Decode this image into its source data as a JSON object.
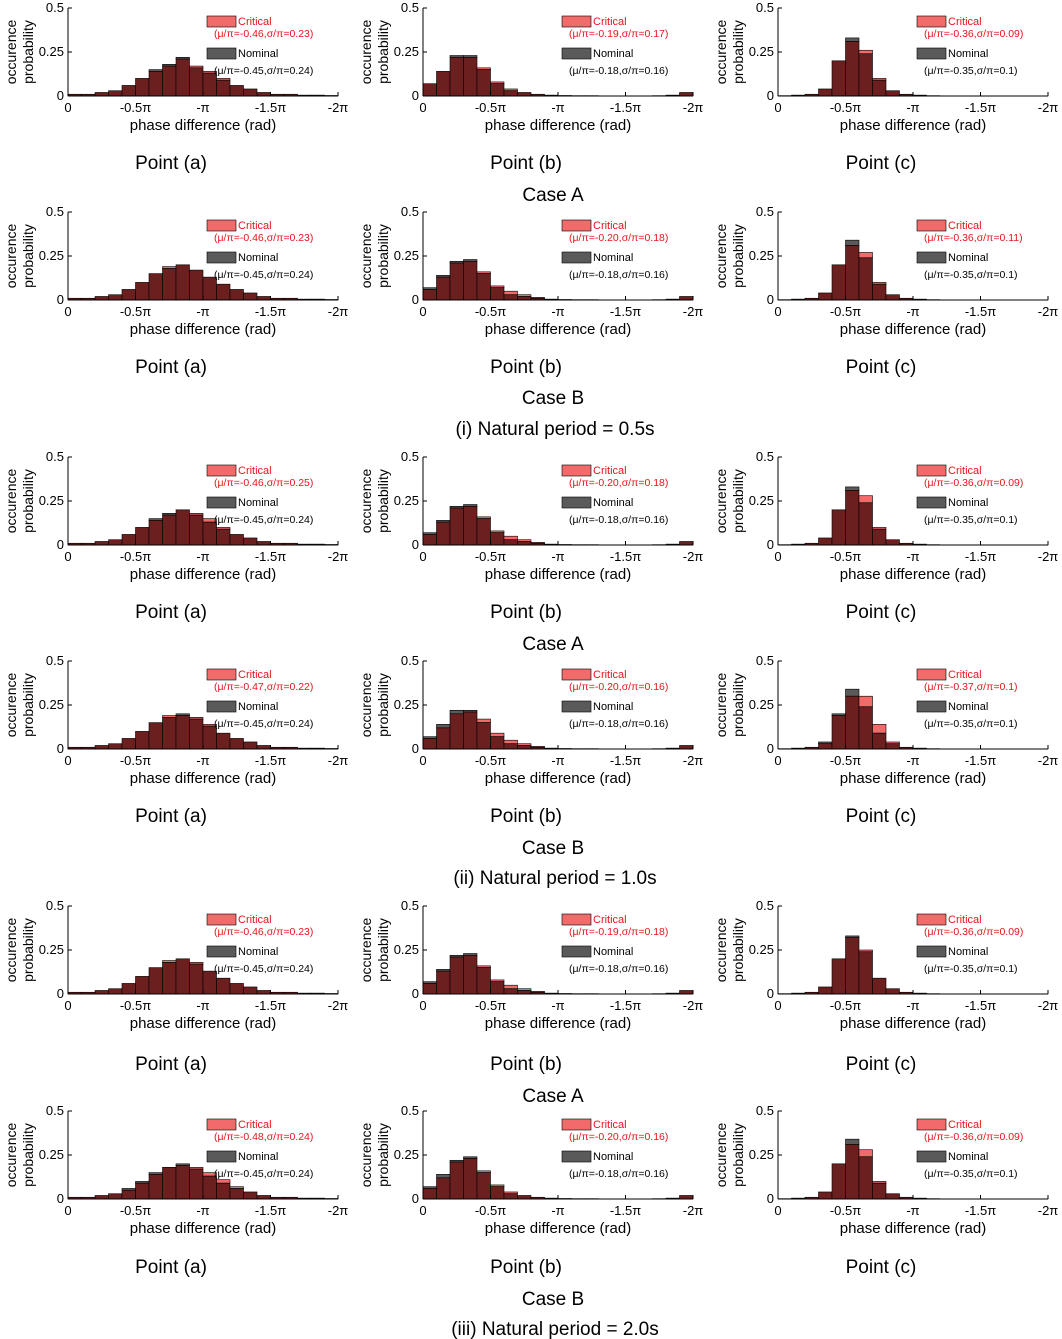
{
  "figure": {
    "yaxis_label_line1": "occurence",
    "yaxis_label_line2": "probability",
    "xaxis_label": "phase difference (rad)",
    "yticks": [
      "0",
      "0.25",
      "0.5"
    ],
    "xticks": [
      "0",
      "-0.5π",
      "-π",
      "-1.5π",
      "-2π"
    ],
    "colors": {
      "critical": "#f26b6b",
      "nominal": "#5a5a5a",
      "overlap": "#6b1f1f",
      "critical_text": "#e8141c"
    },
    "legend": {
      "critical": "Critical",
      "nominal": "Nominal"
    },
    "points": [
      "Point (a)",
      "Point (b)",
      "Point (c)"
    ],
    "case_labels": [
      "Case A",
      "Case B"
    ],
    "period_labels": [
      "(i) Natural period = 0.5s",
      "(ii) Natural period = 1.0s",
      "(iii) Natural period = 2.0s"
    ]
  },
  "chart_data": [
    {
      "type": "bar",
      "period": "0.5s",
      "case": "A",
      "point": "a",
      "critical_stat": "(μ/π=-0.46,σ/π=0.23)",
      "nominal_stat": "(μ/π=-0.45,σ/π=0.24)",
      "ylim": [
        0,
        0.5
      ],
      "xlim": [
        0,
        -2
      ],
      "bin_width": 0.1,
      "critical": [
        0.01,
        0.01,
        0.02,
        0.03,
        0.06,
        0.1,
        0.14,
        0.17,
        0.21,
        0.17,
        0.14,
        0.1,
        0.06,
        0.04,
        0.02,
        0.01,
        0.01,
        0.005,
        0.005,
        0.003
      ],
      "nominal": [
        0.01,
        0.01,
        0.02,
        0.03,
        0.06,
        0.1,
        0.15,
        0.18,
        0.22,
        0.16,
        0.13,
        0.09,
        0.06,
        0.04,
        0.02,
        0.01,
        0.01,
        0.005,
        0.005,
        0.003
      ]
    },
    {
      "type": "bar",
      "period": "0.5s",
      "case": "A",
      "point": "b",
      "critical_stat": "(μ/π=-0.19,σ/π=0.17)",
      "nominal_stat": "(μ/π=-0.18,σ/π=0.16)",
      "ylim": [
        0,
        0.5
      ],
      "xlim": [
        0,
        -2
      ],
      "bin_width": 0.1,
      "critical": [
        0.07,
        0.14,
        0.22,
        0.22,
        0.16,
        0.08,
        0.04,
        0.02,
        0.01,
        0.005,
        0.003,
        0.002,
        0.002,
        0.001,
        0.001,
        0.001,
        0.001,
        0.002,
        0.005,
        0.02
      ],
      "nominal": [
        0.07,
        0.14,
        0.23,
        0.23,
        0.15,
        0.07,
        0.03,
        0.02,
        0.01,
        0.005,
        0.003,
        0.002,
        0.002,
        0.001,
        0.001,
        0.001,
        0.001,
        0.002,
        0.005,
        0.02
      ]
    },
    {
      "type": "bar",
      "period": "0.5s",
      "case": "A",
      "point": "c",
      "critical_stat": "(μ/π=-0.36,σ/π=0.09)",
      "nominal_stat": "(μ/π=-0.35,σ/π=0.1)",
      "ylim": [
        0,
        0.5
      ],
      "xlim": [
        0,
        -2
      ],
      "bin_width": 0.1,
      "critical": [
        0.002,
        0.005,
        0.01,
        0.04,
        0.2,
        0.31,
        0.26,
        0.1,
        0.03,
        0.01,
        0.005,
        0.002,
        0.001,
        0.001,
        0.001,
        0.001,
        0.001,
        0.001,
        0.001,
        0.001
      ],
      "nominal": [
        0.002,
        0.005,
        0.01,
        0.04,
        0.2,
        0.33,
        0.24,
        0.09,
        0.03,
        0.01,
        0.005,
        0.002,
        0.001,
        0.001,
        0.001,
        0.001,
        0.001,
        0.001,
        0.001,
        0.001
      ]
    },
    {
      "type": "bar",
      "period": "0.5s",
      "case": "B",
      "point": "a",
      "critical_stat": "(μ/π=-0.46,σ/π=0.23)",
      "nominal_stat": "(μ/π=-0.45,σ/π=0.24)",
      "ylim": [
        0,
        0.5
      ],
      "xlim": [
        0,
        -2
      ],
      "bin_width": 0.1,
      "critical": [
        0.01,
        0.01,
        0.02,
        0.03,
        0.06,
        0.1,
        0.15,
        0.19,
        0.2,
        0.17,
        0.13,
        0.09,
        0.06,
        0.04,
        0.02,
        0.01,
        0.01,
        0.005,
        0.005,
        0.003
      ],
      "nominal": [
        0.01,
        0.01,
        0.02,
        0.03,
        0.06,
        0.1,
        0.15,
        0.18,
        0.2,
        0.17,
        0.13,
        0.09,
        0.06,
        0.04,
        0.02,
        0.01,
        0.01,
        0.005,
        0.005,
        0.003
      ]
    },
    {
      "type": "bar",
      "period": "0.5s",
      "case": "B",
      "point": "b",
      "critical_stat": "(μ/π=-0.20,σ/π=0.18)",
      "nominal_stat": "(μ/π=-0.18,σ/π=0.16)",
      "ylim": [
        0,
        0.5
      ],
      "xlim": [
        0,
        -2
      ],
      "bin_width": 0.1,
      "critical": [
        0.06,
        0.13,
        0.21,
        0.22,
        0.16,
        0.08,
        0.05,
        0.03,
        0.015,
        0.005,
        0.003,
        0.002,
        0.002,
        0.001,
        0.001,
        0.001,
        0.001,
        0.002,
        0.005,
        0.02
      ],
      "nominal": [
        0.07,
        0.14,
        0.22,
        0.23,
        0.15,
        0.07,
        0.03,
        0.02,
        0.01,
        0.005,
        0.003,
        0.002,
        0.002,
        0.001,
        0.001,
        0.001,
        0.001,
        0.002,
        0.005,
        0.02
      ]
    },
    {
      "type": "bar",
      "period": "0.5s",
      "case": "B",
      "point": "c",
      "critical_stat": "(μ/π=-0.36,σ/π=0.11)",
      "nominal_stat": "(μ/π=-0.35,σ/π=0.1)",
      "ylim": [
        0,
        0.5
      ],
      "xlim": [
        0,
        -2
      ],
      "bin_width": 0.1,
      "critical": [
        0.002,
        0.005,
        0.01,
        0.04,
        0.2,
        0.31,
        0.27,
        0.1,
        0.03,
        0.01,
        0.005,
        0.002,
        0.001,
        0.001,
        0.001,
        0.001,
        0.001,
        0.001,
        0.001,
        0.001
      ],
      "nominal": [
        0.002,
        0.005,
        0.01,
        0.04,
        0.2,
        0.34,
        0.24,
        0.09,
        0.03,
        0.01,
        0.005,
        0.002,
        0.001,
        0.001,
        0.001,
        0.001,
        0.001,
        0.001,
        0.001,
        0.001
      ]
    },
    {
      "type": "bar",
      "period": "1.0s",
      "case": "A",
      "point": "a",
      "critical_stat": "(μ/π=-0.46,σ/π=0.25)",
      "nominal_stat": "(μ/π=-0.45,σ/π=0.24)",
      "ylim": [
        0,
        0.5
      ],
      "xlim": [
        0,
        -2
      ],
      "bin_width": 0.1,
      "critical": [
        0.01,
        0.01,
        0.02,
        0.03,
        0.06,
        0.1,
        0.14,
        0.17,
        0.2,
        0.18,
        0.15,
        0.1,
        0.06,
        0.04,
        0.02,
        0.01,
        0.01,
        0.005,
        0.005,
        0.003
      ],
      "nominal": [
        0.01,
        0.01,
        0.02,
        0.03,
        0.06,
        0.1,
        0.15,
        0.18,
        0.2,
        0.17,
        0.13,
        0.09,
        0.06,
        0.04,
        0.02,
        0.01,
        0.01,
        0.005,
        0.005,
        0.003
      ]
    },
    {
      "type": "bar",
      "period": "1.0s",
      "case": "A",
      "point": "b",
      "critical_stat": "(μ/π=-0.20,σ/π=0.18)",
      "nominal_stat": "(μ/π=-0.18,σ/π=0.16)",
      "ylim": [
        0,
        0.5
      ],
      "xlim": [
        0,
        -2
      ],
      "bin_width": 0.1,
      "critical": [
        0.06,
        0.13,
        0.21,
        0.22,
        0.16,
        0.08,
        0.05,
        0.03,
        0.015,
        0.005,
        0.003,
        0.002,
        0.002,
        0.001,
        0.001,
        0.001,
        0.001,
        0.002,
        0.005,
        0.02
      ],
      "nominal": [
        0.07,
        0.14,
        0.22,
        0.23,
        0.15,
        0.07,
        0.03,
        0.02,
        0.01,
        0.005,
        0.003,
        0.002,
        0.002,
        0.001,
        0.001,
        0.001,
        0.001,
        0.002,
        0.005,
        0.02
      ]
    },
    {
      "type": "bar",
      "period": "1.0s",
      "case": "A",
      "point": "c",
      "critical_stat": "(μ/π=-0.36,σ/π=0.09)",
      "nominal_stat": "(μ/π=-0.35,σ/π=0.1)",
      "ylim": [
        0,
        0.5
      ],
      "xlim": [
        0,
        -2
      ],
      "bin_width": 0.1,
      "critical": [
        0.002,
        0.005,
        0.01,
        0.04,
        0.2,
        0.31,
        0.28,
        0.1,
        0.03,
        0.01,
        0.005,
        0.002,
        0.001,
        0.001,
        0.001,
        0.001,
        0.001,
        0.001,
        0.001,
        0.001
      ],
      "nominal": [
        0.002,
        0.005,
        0.01,
        0.04,
        0.2,
        0.33,
        0.24,
        0.09,
        0.03,
        0.01,
        0.005,
        0.002,
        0.001,
        0.001,
        0.001,
        0.001,
        0.001,
        0.001,
        0.001,
        0.001
      ]
    },
    {
      "type": "bar",
      "period": "1.0s",
      "case": "B",
      "point": "a",
      "critical_stat": "(μ/π=-0.47,σ/π=0.22)",
      "nominal_stat": "(μ/π=-0.45,σ/π=0.24)",
      "ylim": [
        0,
        0.5
      ],
      "xlim": [
        0,
        -2
      ],
      "bin_width": 0.1,
      "critical": [
        0.01,
        0.01,
        0.02,
        0.03,
        0.06,
        0.1,
        0.15,
        0.19,
        0.19,
        0.18,
        0.14,
        0.09,
        0.06,
        0.04,
        0.02,
        0.01,
        0.01,
        0.005,
        0.005,
        0.003
      ],
      "nominal": [
        0.01,
        0.01,
        0.02,
        0.03,
        0.06,
        0.1,
        0.15,
        0.18,
        0.2,
        0.17,
        0.13,
        0.09,
        0.06,
        0.04,
        0.02,
        0.01,
        0.01,
        0.005,
        0.005,
        0.003
      ]
    },
    {
      "type": "bar",
      "period": "1.0s",
      "case": "B",
      "point": "b",
      "critical_stat": "(μ/π=-0.20,σ/π=0.16)",
      "nominal_stat": "(μ/π=-0.18,σ/π=0.16)",
      "ylim": [
        0,
        0.5
      ],
      "xlim": [
        0,
        -2
      ],
      "bin_width": 0.1,
      "critical": [
        0.06,
        0.12,
        0.2,
        0.21,
        0.17,
        0.09,
        0.05,
        0.03,
        0.015,
        0.005,
        0.003,
        0.002,
        0.002,
        0.001,
        0.001,
        0.001,
        0.001,
        0.002,
        0.005,
        0.02
      ],
      "nominal": [
        0.07,
        0.14,
        0.22,
        0.22,
        0.15,
        0.07,
        0.03,
        0.02,
        0.01,
        0.005,
        0.003,
        0.002,
        0.002,
        0.001,
        0.001,
        0.001,
        0.001,
        0.002,
        0.005,
        0.02
      ]
    },
    {
      "type": "bar",
      "period": "1.0s",
      "case": "B",
      "point": "c",
      "critical_stat": "(μ/π=-0.37,σ/π=0.1)",
      "nominal_stat": "(μ/π=-0.35,σ/π=0.1)",
      "ylim": [
        0,
        0.5
      ],
      "xlim": [
        0,
        -2
      ],
      "bin_width": 0.1,
      "critical": [
        0.002,
        0.005,
        0.01,
        0.03,
        0.19,
        0.3,
        0.3,
        0.14,
        0.04,
        0.01,
        0.005,
        0.002,
        0.001,
        0.001,
        0.001,
        0.001,
        0.001,
        0.001,
        0.001,
        0.001
      ],
      "nominal": [
        0.002,
        0.005,
        0.01,
        0.04,
        0.2,
        0.34,
        0.24,
        0.09,
        0.03,
        0.01,
        0.005,
        0.002,
        0.001,
        0.001,
        0.001,
        0.001,
        0.001,
        0.001,
        0.001,
        0.001
      ]
    },
    {
      "type": "bar",
      "period": "2.0s",
      "case": "A",
      "point": "a",
      "critical_stat": "(μ/π=-0.46,σ/π=0.23)",
      "nominal_stat": "(μ/π=-0.45,σ/π=0.24)",
      "ylim": [
        0,
        0.5
      ],
      "xlim": [
        0,
        -2
      ],
      "bin_width": 0.1,
      "critical": [
        0.01,
        0.01,
        0.02,
        0.03,
        0.06,
        0.1,
        0.15,
        0.19,
        0.2,
        0.18,
        0.13,
        0.09,
        0.06,
        0.04,
        0.02,
        0.01,
        0.01,
        0.005,
        0.005,
        0.003
      ],
      "nominal": [
        0.01,
        0.01,
        0.02,
        0.03,
        0.06,
        0.1,
        0.15,
        0.18,
        0.2,
        0.17,
        0.13,
        0.09,
        0.06,
        0.04,
        0.02,
        0.01,
        0.01,
        0.005,
        0.005,
        0.003
      ]
    },
    {
      "type": "bar",
      "period": "2.0s",
      "case": "A",
      "point": "b",
      "critical_stat": "(μ/π=-0.19,σ/π=0.18)",
      "nominal_stat": "(μ/π=-0.18,σ/π=0.16)",
      "ylim": [
        0,
        0.5
      ],
      "xlim": [
        0,
        -2
      ],
      "bin_width": 0.1,
      "critical": [
        0.06,
        0.13,
        0.21,
        0.22,
        0.16,
        0.08,
        0.05,
        0.03,
        0.015,
        0.005,
        0.003,
        0.002,
        0.002,
        0.001,
        0.001,
        0.001,
        0.001,
        0.002,
        0.005,
        0.02
      ],
      "nominal": [
        0.07,
        0.14,
        0.22,
        0.23,
        0.15,
        0.07,
        0.03,
        0.02,
        0.01,
        0.005,
        0.003,
        0.002,
        0.002,
        0.001,
        0.001,
        0.001,
        0.001,
        0.002,
        0.005,
        0.02
      ]
    },
    {
      "type": "bar",
      "period": "2.0s",
      "case": "A",
      "point": "c",
      "critical_stat": "(μ/π=-0.36,σ/π=0.09)",
      "nominal_stat": "(μ/π=-0.35,σ/π=0.1)",
      "ylim": [
        0,
        0.5
      ],
      "xlim": [
        0,
        -2
      ],
      "bin_width": 0.1,
      "critical": [
        0.002,
        0.005,
        0.01,
        0.04,
        0.2,
        0.32,
        0.25,
        0.09,
        0.03,
        0.01,
        0.005,
        0.002,
        0.001,
        0.001,
        0.001,
        0.001,
        0.001,
        0.001,
        0.001,
        0.001
      ],
      "nominal": [
        0.002,
        0.005,
        0.01,
        0.04,
        0.2,
        0.33,
        0.24,
        0.09,
        0.03,
        0.01,
        0.005,
        0.002,
        0.001,
        0.001,
        0.001,
        0.001,
        0.001,
        0.001,
        0.001,
        0.001
      ]
    },
    {
      "type": "bar",
      "period": "2.0s",
      "case": "B",
      "point": "a",
      "critical_stat": "(μ/π=-0.48,σ/π=0.24)",
      "nominal_stat": "(μ/π=-0.45,σ/π=0.24)",
      "ylim": [
        0,
        0.5
      ],
      "xlim": [
        0,
        -2
      ],
      "bin_width": 0.1,
      "critical": [
        0.01,
        0.01,
        0.02,
        0.03,
        0.05,
        0.09,
        0.14,
        0.18,
        0.19,
        0.18,
        0.15,
        0.11,
        0.07,
        0.04,
        0.02,
        0.01,
        0.01,
        0.005,
        0.005,
        0.003
      ],
      "nominal": [
        0.01,
        0.01,
        0.02,
        0.03,
        0.06,
        0.1,
        0.15,
        0.18,
        0.2,
        0.17,
        0.13,
        0.09,
        0.06,
        0.04,
        0.02,
        0.01,
        0.01,
        0.005,
        0.005,
        0.003
      ]
    },
    {
      "type": "bar",
      "period": "2.0s",
      "case": "B",
      "point": "b",
      "critical_stat": "(μ/π=-0.20,σ/π=0.16)",
      "nominal_stat": "(μ/π=-0.18,σ/π=0.16)",
      "ylim": [
        0,
        0.5
      ],
      "xlim": [
        0,
        -2
      ],
      "bin_width": 0.1,
      "critical": [
        0.06,
        0.12,
        0.21,
        0.23,
        0.16,
        0.08,
        0.04,
        0.02,
        0.01,
        0.005,
        0.003,
        0.002,
        0.002,
        0.001,
        0.001,
        0.001,
        0.001,
        0.002,
        0.005,
        0.02
      ],
      "nominal": [
        0.07,
        0.14,
        0.22,
        0.24,
        0.15,
        0.07,
        0.03,
        0.02,
        0.01,
        0.005,
        0.003,
        0.002,
        0.002,
        0.001,
        0.001,
        0.001,
        0.001,
        0.002,
        0.005,
        0.02
      ]
    },
    {
      "type": "bar",
      "period": "2.0s",
      "case": "B",
      "point": "c",
      "critical_stat": "(μ/π=-0.36,σ/π=0.09)",
      "nominal_stat": "(μ/π=-0.35,σ/π=0.1)",
      "ylim": [
        0,
        0.5
      ],
      "xlim": [
        0,
        -2
      ],
      "bin_width": 0.1,
      "critical": [
        0.002,
        0.005,
        0.01,
        0.04,
        0.2,
        0.31,
        0.28,
        0.1,
        0.03,
        0.01,
        0.005,
        0.002,
        0.001,
        0.001,
        0.001,
        0.001,
        0.001,
        0.001,
        0.001,
        0.001
      ],
      "nominal": [
        0.002,
        0.005,
        0.01,
        0.04,
        0.2,
        0.34,
        0.24,
        0.09,
        0.03,
        0.01,
        0.005,
        0.002,
        0.001,
        0.001,
        0.001,
        0.001,
        0.001,
        0.001,
        0.001,
        0.001
      ]
    }
  ]
}
